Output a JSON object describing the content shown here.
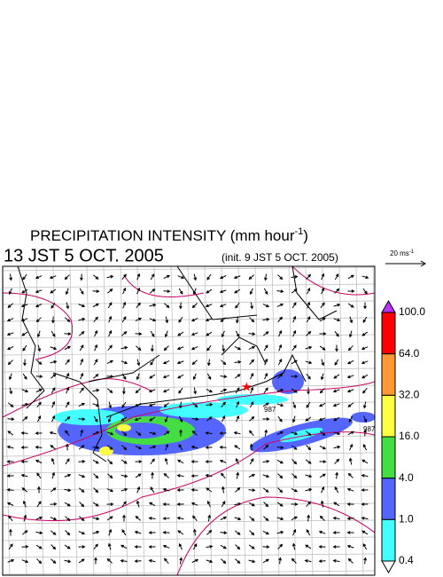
{
  "header": {
    "title": "PRECIPITATION INTENSITY (mm hour",
    "title_exponent": "-1",
    "title_close": ")",
    "valid_time": "13 JST 5 OCT. 2005",
    "init_time": "(init. 9 JST 5 OCT. 2005)"
  },
  "reference_vector": {
    "unit": "20 ms",
    "exponent": "-1"
  },
  "colorbar": {
    "labels": [
      "100.0",
      "64.0",
      "32.0",
      "16.0",
      "4.0",
      "1.0",
      "0.4"
    ],
    "colors": [
      "#ff0000",
      "#ff9933",
      "#ffff44",
      "#44dd44",
      "#5566ff",
      "#44ffff"
    ],
    "over_color": "#bb33ff",
    "under_color": "#ffffff"
  },
  "map": {
    "contour_labels": [
      "987",
      "987"
    ]
  }
}
